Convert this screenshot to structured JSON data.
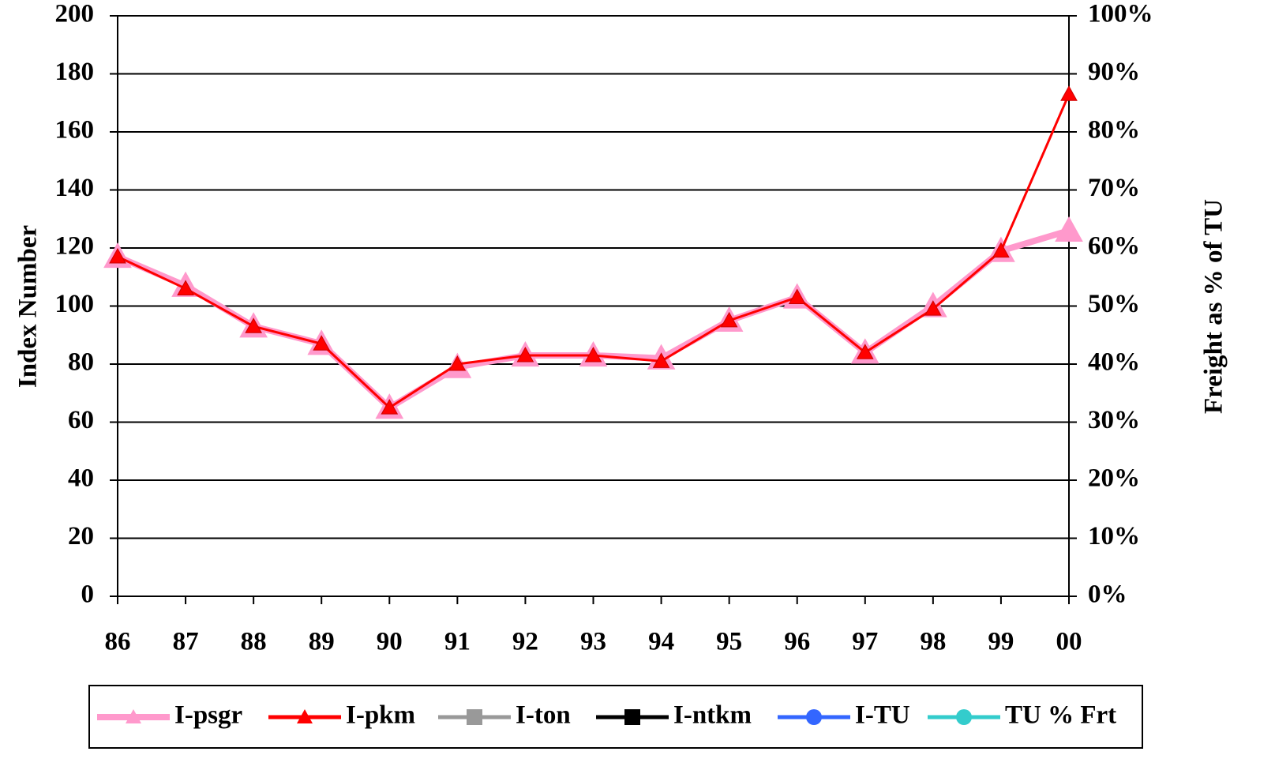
{
  "chart_data": {
    "type": "line",
    "y_label": "Index Number",
    "y2_label": "Freight as % of TU",
    "categories": [
      "86",
      "87",
      "88",
      "89",
      "90",
      "91",
      "92",
      "93",
      "94",
      "95",
      "96",
      "97",
      "98",
      "99",
      "00"
    ],
    "series": [
      {
        "name": "I-psgr",
        "color": "#ff99cc",
        "marker": "triangle",
        "values": [
          117,
          107,
          93,
          87,
          65,
          79,
          83,
          83,
          82,
          95,
          103,
          84,
          100,
          119,
          126
        ]
      },
      {
        "name": "I-pkm",
        "color": "#ff0000",
        "marker": "triangle",
        "values": [
          117,
          106,
          93,
          87,
          65,
          80,
          83,
          83,
          81,
          95,
          103,
          84,
          99,
          119,
          173
        ]
      },
      {
        "name": "I-ton",
        "color": "#999999",
        "marker": "square",
        "values": [
          null,
          null,
          null,
          null,
          null,
          null,
          null,
          null,
          null,
          null,
          null,
          null,
          null,
          null,
          null
        ]
      },
      {
        "name": "I-ntkm",
        "color": "#000000",
        "marker": "square",
        "values": [
          null,
          null,
          null,
          null,
          null,
          null,
          null,
          null,
          null,
          null,
          null,
          null,
          null,
          null,
          null
        ]
      },
      {
        "name": "I-TU",
        "color": "#3366ff",
        "marker": "circle",
        "values": [
          null,
          null,
          null,
          null,
          null,
          null,
          null,
          null,
          null,
          null,
          null,
          null,
          null,
          null,
          null
        ]
      },
      {
        "name": "TU % Frt",
        "color": "#33cccc",
        "marker": "circle",
        "axis": "y2",
        "values": [
          null,
          null,
          null,
          null,
          null,
          null,
          null,
          null,
          null,
          null,
          null,
          null,
          null,
          null,
          null
        ]
      }
    ],
    "ylim": [
      0,
      200
    ],
    "yticks": [
      0,
      20,
      40,
      60,
      80,
      100,
      120,
      140,
      160,
      180,
      200
    ],
    "y2lim": [
      0,
      100
    ],
    "y2ticks": [
      {
        "value": 0,
        "label": "0%"
      },
      {
        "value": 10,
        "label": "10%"
      },
      {
        "value": 20,
        "label": "20%"
      },
      {
        "value": 30,
        "label": "30%"
      },
      {
        "value": 40,
        "label": "40%"
      },
      {
        "value": 50,
        "label": "50%"
      },
      {
        "value": 60,
        "label": "60%"
      },
      {
        "value": 70,
        "label": "70%"
      },
      {
        "value": 80,
        "label": "80%"
      },
      {
        "value": 90,
        "label": "90%"
      },
      {
        "value": 100,
        "label": "100%"
      }
    ],
    "grid": true,
    "legend": "bottom"
  }
}
